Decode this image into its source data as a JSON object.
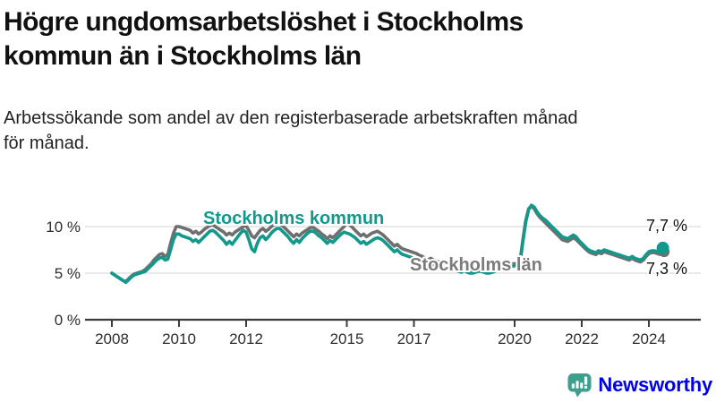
{
  "header": {
    "title": "Högre ungdomsarbetslöshet i Stockholms\nkommun än i Stockholms län",
    "subtitle": "Arbetssökande som andel av den registerbaserade arbetskraften månad\nför månad."
  },
  "chart_data": {
    "type": "line",
    "x_start_year": 2008,
    "x_frequency": "monthly",
    "ylim": [
      0,
      12.5
    ],
    "grid": "horizontal",
    "yticks": [
      {
        "value": 0,
        "label": "0 %"
      },
      {
        "value": 5,
        "label": "5 %"
      },
      {
        "value": 10,
        "label": "10 %"
      }
    ],
    "xticks": [
      {
        "year": 2008,
        "label": "2008"
      },
      {
        "year": 2010,
        "label": "2010"
      },
      {
        "year": 2012,
        "label": "2012"
      },
      {
        "year": 2015,
        "label": "2015"
      },
      {
        "year": 2017,
        "label": "2017"
      },
      {
        "year": 2020,
        "label": "2020"
      },
      {
        "year": 2022,
        "label": "2022"
      },
      {
        "year": 2024,
        "label": "2024"
      }
    ],
    "series": [
      {
        "name": "Stockholms kommun",
        "color": "#12998C",
        "end_label": "7,7 %",
        "end_value": 7.7,
        "values": [
          5.0,
          4.8,
          4.6,
          4.4,
          4.2,
          4.0,
          4.3,
          4.6,
          4.8,
          4.9,
          5.0,
          5.1,
          5.2,
          5.5,
          5.8,
          6.1,
          6.4,
          6.6,
          6.7,
          6.4,
          6.5,
          7.5,
          8.6,
          9.2,
          9.2,
          9.0,
          8.9,
          8.8,
          8.7,
          8.4,
          8.6,
          8.3,
          8.6,
          8.9,
          9.2,
          9.5,
          9.6,
          9.4,
          9.1,
          8.8,
          8.5,
          8.1,
          8.4,
          8.1,
          8.5,
          8.9,
          9.3,
          9.6,
          9.4,
          8.6,
          7.6,
          7.3,
          8.2,
          8.8,
          9.0,
          8.6,
          8.9,
          9.3,
          9.6,
          9.8,
          9.8,
          9.5,
          9.2,
          8.9,
          8.5,
          8.2,
          8.6,
          8.3,
          8.7,
          9.0,
          9.3,
          9.5,
          9.5,
          9.3,
          9.0,
          8.8,
          8.5,
          8.2,
          8.5,
          8.3,
          8.6,
          8.9,
          9.2,
          9.4,
          9.3,
          9.2,
          9.0,
          8.8,
          8.5,
          8.2,
          8.4,
          8.1,
          8.3,
          8.5,
          8.7,
          8.8,
          8.7,
          8.5,
          8.2,
          7.9,
          7.6,
          7.3,
          7.5,
          7.2,
          7.0,
          6.9,
          6.8,
          6.7,
          6.6,
          6.5,
          6.4,
          6.2,
          6.1,
          5.9,
          6.1,
          5.9,
          5.8,
          5.7,
          5.7,
          5.6,
          5.6,
          5.5,
          5.4,
          5.3,
          5.2,
          5.1,
          5.3,
          5.1,
          5.0,
          5.0,
          5.1,
          5.2,
          5.2,
          5.1,
          5.0,
          5.0,
          5.1,
          5.2,
          5.4,
          5.3,
          5.4,
          5.5,
          5.6,
          5.7,
          5.8,
          5.9,
          6.3,
          8.5,
          10.5,
          11.8,
          12.3,
          12.1,
          11.6,
          11.2,
          10.9,
          10.7,
          10.4,
          10.1,
          9.8,
          9.5,
          9.2,
          8.9,
          8.8,
          8.7,
          8.9,
          9.1,
          8.9,
          8.5,
          8.2,
          7.9,
          7.6,
          7.4,
          7.3,
          7.2,
          7.4,
          7.3,
          7.5,
          7.4,
          7.3,
          7.2,
          7.1,
          7.0,
          6.9,
          6.8,
          6.7,
          6.6,
          6.8,
          6.6,
          6.5,
          6.4,
          6.6,
          7.0,
          7.3,
          7.4,
          7.4,
          7.3,
          7.4,
          7.7
        ]
      },
      {
        "name": "Stockholms län",
        "color": "#6F6F6F",
        "end_label": "7,3 %",
        "end_value": 7.3,
        "values": [
          5.0,
          4.8,
          4.6,
          4.4,
          4.2,
          4.1,
          4.4,
          4.7,
          4.9,
          5.0,
          5.1,
          5.2,
          5.4,
          5.7,
          6.0,
          6.4,
          6.7,
          7.0,
          7.1,
          6.8,
          7.0,
          8.2,
          9.3,
          10.0,
          10.0,
          9.9,
          9.8,
          9.7,
          9.6,
          9.3,
          9.5,
          9.2,
          9.4,
          9.7,
          9.9,
          10.1,
          10.2,
          10.0,
          9.8,
          9.6,
          9.4,
          9.1,
          9.3,
          9.1,
          9.4,
          9.6,
          9.8,
          10.0,
          10.1,
          9.6,
          9.0,
          8.8,
          9.2,
          9.6,
          9.8,
          9.5,
          9.7,
          10.0,
          10.2,
          10.3,
          10.4,
          10.1,
          9.8,
          9.5,
          9.2,
          8.9,
          9.2,
          9.0,
          9.3,
          9.5,
          9.7,
          9.9,
          9.9,
          9.7,
          9.5,
          9.2,
          9.0,
          8.7,
          9.0,
          8.8,
          9.1,
          9.4,
          9.7,
          10.0,
          10.4,
          10.2,
          9.9,
          9.6,
          9.3,
          9.0,
          9.2,
          8.9,
          9.1,
          9.3,
          9.4,
          9.5,
          9.3,
          9.1,
          8.8,
          8.5,
          8.2,
          7.9,
          8.1,
          7.8,
          7.6,
          7.5,
          7.4,
          7.3,
          7.2,
          7.1,
          6.9,
          6.8,
          6.6,
          6.4,
          6.6,
          6.4,
          6.3,
          6.2,
          6.1,
          6.0,
          6.0,
          5.9,
          5.8,
          5.6,
          5.5,
          5.4,
          5.6,
          5.4,
          5.3,
          5.3,
          5.4,
          5.5,
          5.5,
          5.4,
          5.3,
          5.3,
          5.4,
          5.5,
          5.7,
          5.6,
          5.7,
          5.8,
          5.9,
          6.0,
          6.0,
          6.1,
          6.5,
          8.7,
          10.7,
          11.9,
          12.2,
          11.9,
          11.4,
          11.0,
          10.7,
          10.4,
          10.1,
          9.8,
          9.5,
          9.2,
          8.9,
          8.6,
          8.5,
          8.4,
          8.6,
          8.8,
          8.6,
          8.3,
          8.0,
          7.7,
          7.4,
          7.2,
          7.1,
          7.0,
          7.2,
          7.1,
          7.3,
          7.2,
          7.1,
          7.0,
          6.9,
          6.8,
          6.7,
          6.6,
          6.5,
          6.4,
          6.6,
          6.4,
          6.3,
          6.2,
          6.4,
          6.8,
          7.1,
          7.2,
          7.2,
          7.1,
          7.0,
          7.3
        ]
      }
    ],
    "colors": {
      "grid": "#dcdcdc",
      "axis": "#3c3c3c",
      "kommun_label": "#12998C",
      "lan_label": "#7b7b7b"
    }
  },
  "footer": {
    "brand": "Newsworthy",
    "brand_color": "#3F9E8D"
  }
}
